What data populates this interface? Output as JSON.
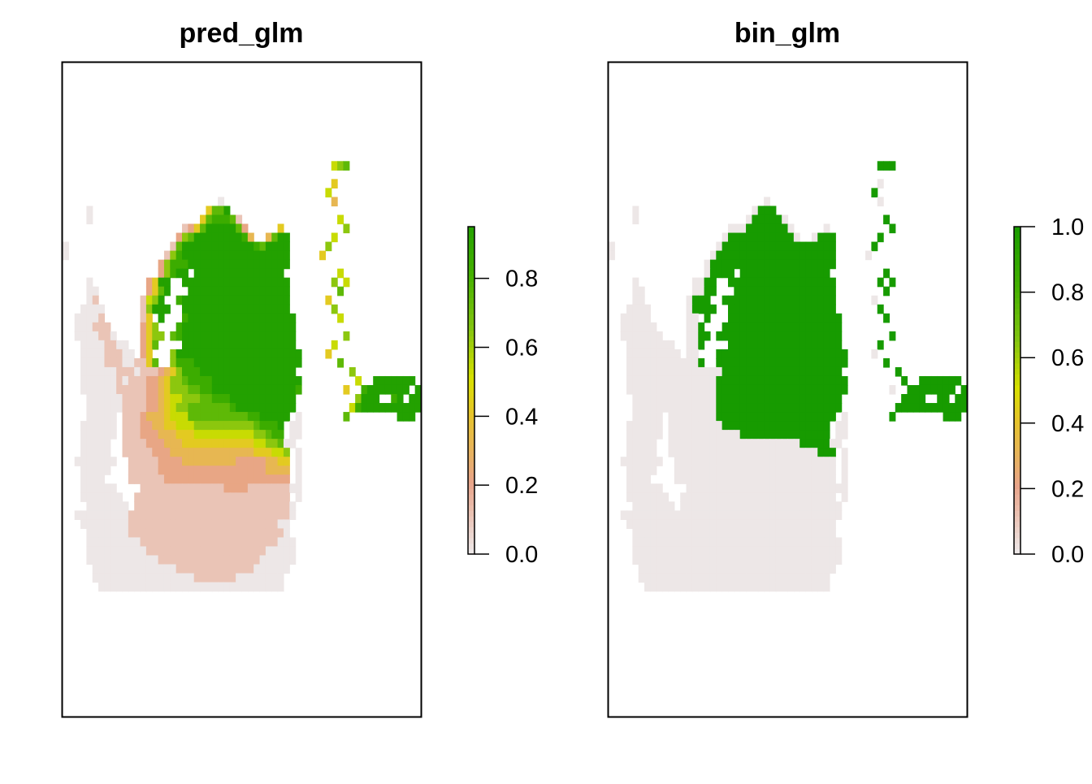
{
  "palette": {
    "stops": [
      [
        0.0,
        "#ede7e7"
      ],
      [
        0.2,
        "#e8a48a"
      ],
      [
        0.4,
        "#e6c42a"
      ],
      [
        0.5,
        "#d8e000"
      ],
      [
        0.65,
        "#82c410"
      ],
      [
        0.8,
        "#46b100"
      ],
      [
        1.0,
        "#179b00"
      ]
    ],
    "na_color": "#ffffff"
  },
  "chart_data": [
    {
      "type": "heatmap",
      "title": "pred_glm",
      "legend": {
        "ticks": [
          "0.0",
          "0.2",
          "0.4",
          "0.6",
          "0.8"
        ],
        "tick_values": [
          0.0,
          0.2,
          0.4,
          0.6,
          0.8
        ],
        "range": [
          0,
          0.95
        ]
      },
      "raster": {
        "rows": [
          "........................................",
          "........................................",
          "........................................",
          "........................................",
          "........................................",
          "........................................",
          "........................................",
          "........................................",
          "........................................",
          "........................................",
          "........................................",
          "........................................",
          "........................................",
          "........................................",
          "........................................",
          "..........................0.............",
          "....0...................4779............",
          "....0..................4788871..........",
          "....................12479999972.....4...",
          "...................2679999999983..3799..",
          "0.................17999999999999879999..",
          "0................168999999999999999999..",
          "................2688899999999999999999..",
          "................26899.999999999999999...",
          "....0.........2499..999999999999999999..",
          "....00........2479...99999999999999999..",
          "....01.......1569..8999999999999999999..",
          "...0000......16999..999999999999999999..",
          "..00001......14.9...8999999999999999999.",
          "..000111.....246...89999999999999999999.",
          "..0000110....2466.789999999999999999999.",
          "...00001100..247....9999999999999999999.",
          "...000011100.24...6999999999999999999999",
          "...0000111001147..6888999999999999999999",
          "...000000111011123468889999999999999999.",
          "...0000001011122346678888999999999999999",
          "...0000001111122346667788999999999999998",
          "....00000011112234556667788899999999999.",
          "....00000011112234566777777789999999999.",
          "....00000.1112333455577777777778899999.0",
          "...000000.111223344555666666666678889.00",
          "...000000.111222333444555555555566788.00",
          "...00000..11112223334444444444445566700.",
          "...00000..1111122233333333333333444556.0",
          "..0000000..111112222333333333222223344.0",
          "...00000...111112222222222222222223333.0",
          "...0000....111111222222222222222222222.0",
          "...000000....111111111111112222111111100",
          "...0000000..11111111111111111111111111.0",
          "....0000000.111111111111111111111111110.",
          "..0000000001111111111111111111111111110.",
          "...00000000111111111111111111111111100..",
          "....0000000111111111111111111111111110..",
          "....00000000011111111111111111111111000.",
          "....00000000001111111111111111111100000.",
          "....00000000000011111111111111111000000.",
          ".....000000000000001111111111111000000..",
          ".....00000000000000000111111100000000...",
          "......0000000000000000000000000000000...",
          "........................................",
          "........................................",
          "........................................",
          "........................................",
          "........................................",
          "........................................",
          "........................................",
          "........................................",
          "........................................",
          "........................................",
          "........................................",
          "........................................",
          "........................................",
          "........................................"
        ],
        "overrides": [
          [
            45,
            11,
            "5"
          ],
          [
            46,
            11,
            "6"
          ],
          [
            47,
            11,
            "7"
          ],
          [
            45,
            13,
            "4"
          ],
          [
            44,
            14,
            "5"
          ],
          [
            45,
            15,
            "3"
          ],
          [
            46,
            17,
            "5"
          ],
          [
            47,
            18,
            "6"
          ],
          [
            45,
            19,
            "5"
          ],
          [
            44,
            20,
            "6"
          ],
          [
            43,
            21,
            "4"
          ],
          [
            46,
            23,
            "5"
          ],
          [
            47,
            24,
            "5"
          ],
          [
            45,
            24,
            "6"
          ],
          [
            46,
            25,
            "7"
          ],
          [
            44,
            26,
            "4"
          ],
          [
            45,
            27,
            "6"
          ],
          [
            46,
            28,
            "5"
          ],
          [
            47,
            30,
            "6"
          ],
          [
            45,
            31,
            "5"
          ],
          [
            44,
            32,
            "4"
          ],
          [
            46,
            33,
            "7"
          ],
          [
            48,
            34,
            "6"
          ],
          [
            49,
            35,
            "5"
          ],
          [
            47,
            36,
            "4"
          ],
          [
            49,
            37,
            "6"
          ],
          [
            48,
            38,
            "5"
          ],
          [
            47,
            39,
            "7"
          ],
          [
            50,
            36,
            "8"
          ],
          [
            51,
            37,
            "9"
          ],
          [
            52,
            37,
            "9"
          ],
          [
            53,
            38,
            "9"
          ],
          [
            54,
            38,
            "9"
          ],
          [
            55,
            37,
            "8"
          ],
          [
            56,
            37,
            "9"
          ],
          [
            57,
            38,
            "9"
          ],
          [
            53,
            36,
            "9"
          ],
          [
            54,
            36,
            "9"
          ],
          [
            55,
            36,
            "9"
          ],
          [
            56,
            36,
            "9"
          ],
          [
            57,
            36,
            "9"
          ],
          [
            58,
            37,
            "9"
          ],
          [
            52,
            35,
            "9"
          ],
          [
            53,
            35,
            "9"
          ],
          [
            54,
            35,
            "9"
          ],
          [
            55,
            35,
            "9"
          ],
          [
            56,
            35,
            "9"
          ],
          [
            57,
            35,
            "9"
          ],
          [
            58,
            35,
            "9"
          ],
          [
            59,
            36,
            "9"
          ],
          [
            59,
            37,
            "9"
          ],
          [
            58,
            38,
            "9"
          ],
          [
            58,
            39,
            "9"
          ],
          [
            56,
            38,
            "9"
          ],
          [
            55,
            38,
            "9"
          ],
          [
            51,
            36,
            "9"
          ],
          [
            52,
            36,
            "9"
          ],
          [
            50,
            37,
            "9"
          ],
          [
            49,
            38,
            "8"
          ],
          [
            50,
            38,
            "9"
          ],
          [
            51,
            38,
            "9"
          ],
          [
            52,
            38,
            "9"
          ],
          [
            59,
            38,
            "9"
          ],
          [
            56,
            39,
            "9"
          ],
          [
            57,
            39,
            "9"
          ]
        ]
      }
    },
    {
      "type": "heatmap",
      "title": "bin_glm",
      "legend": {
        "ticks": [
          "0.0",
          "0.2",
          "0.4",
          "0.6",
          "0.8",
          "1.0"
        ],
        "tick_values": [
          0.0,
          0.2,
          0.4,
          0.6,
          0.8,
          1.0
        ],
        "range": [
          0,
          1
        ]
      }
    }
  ]
}
